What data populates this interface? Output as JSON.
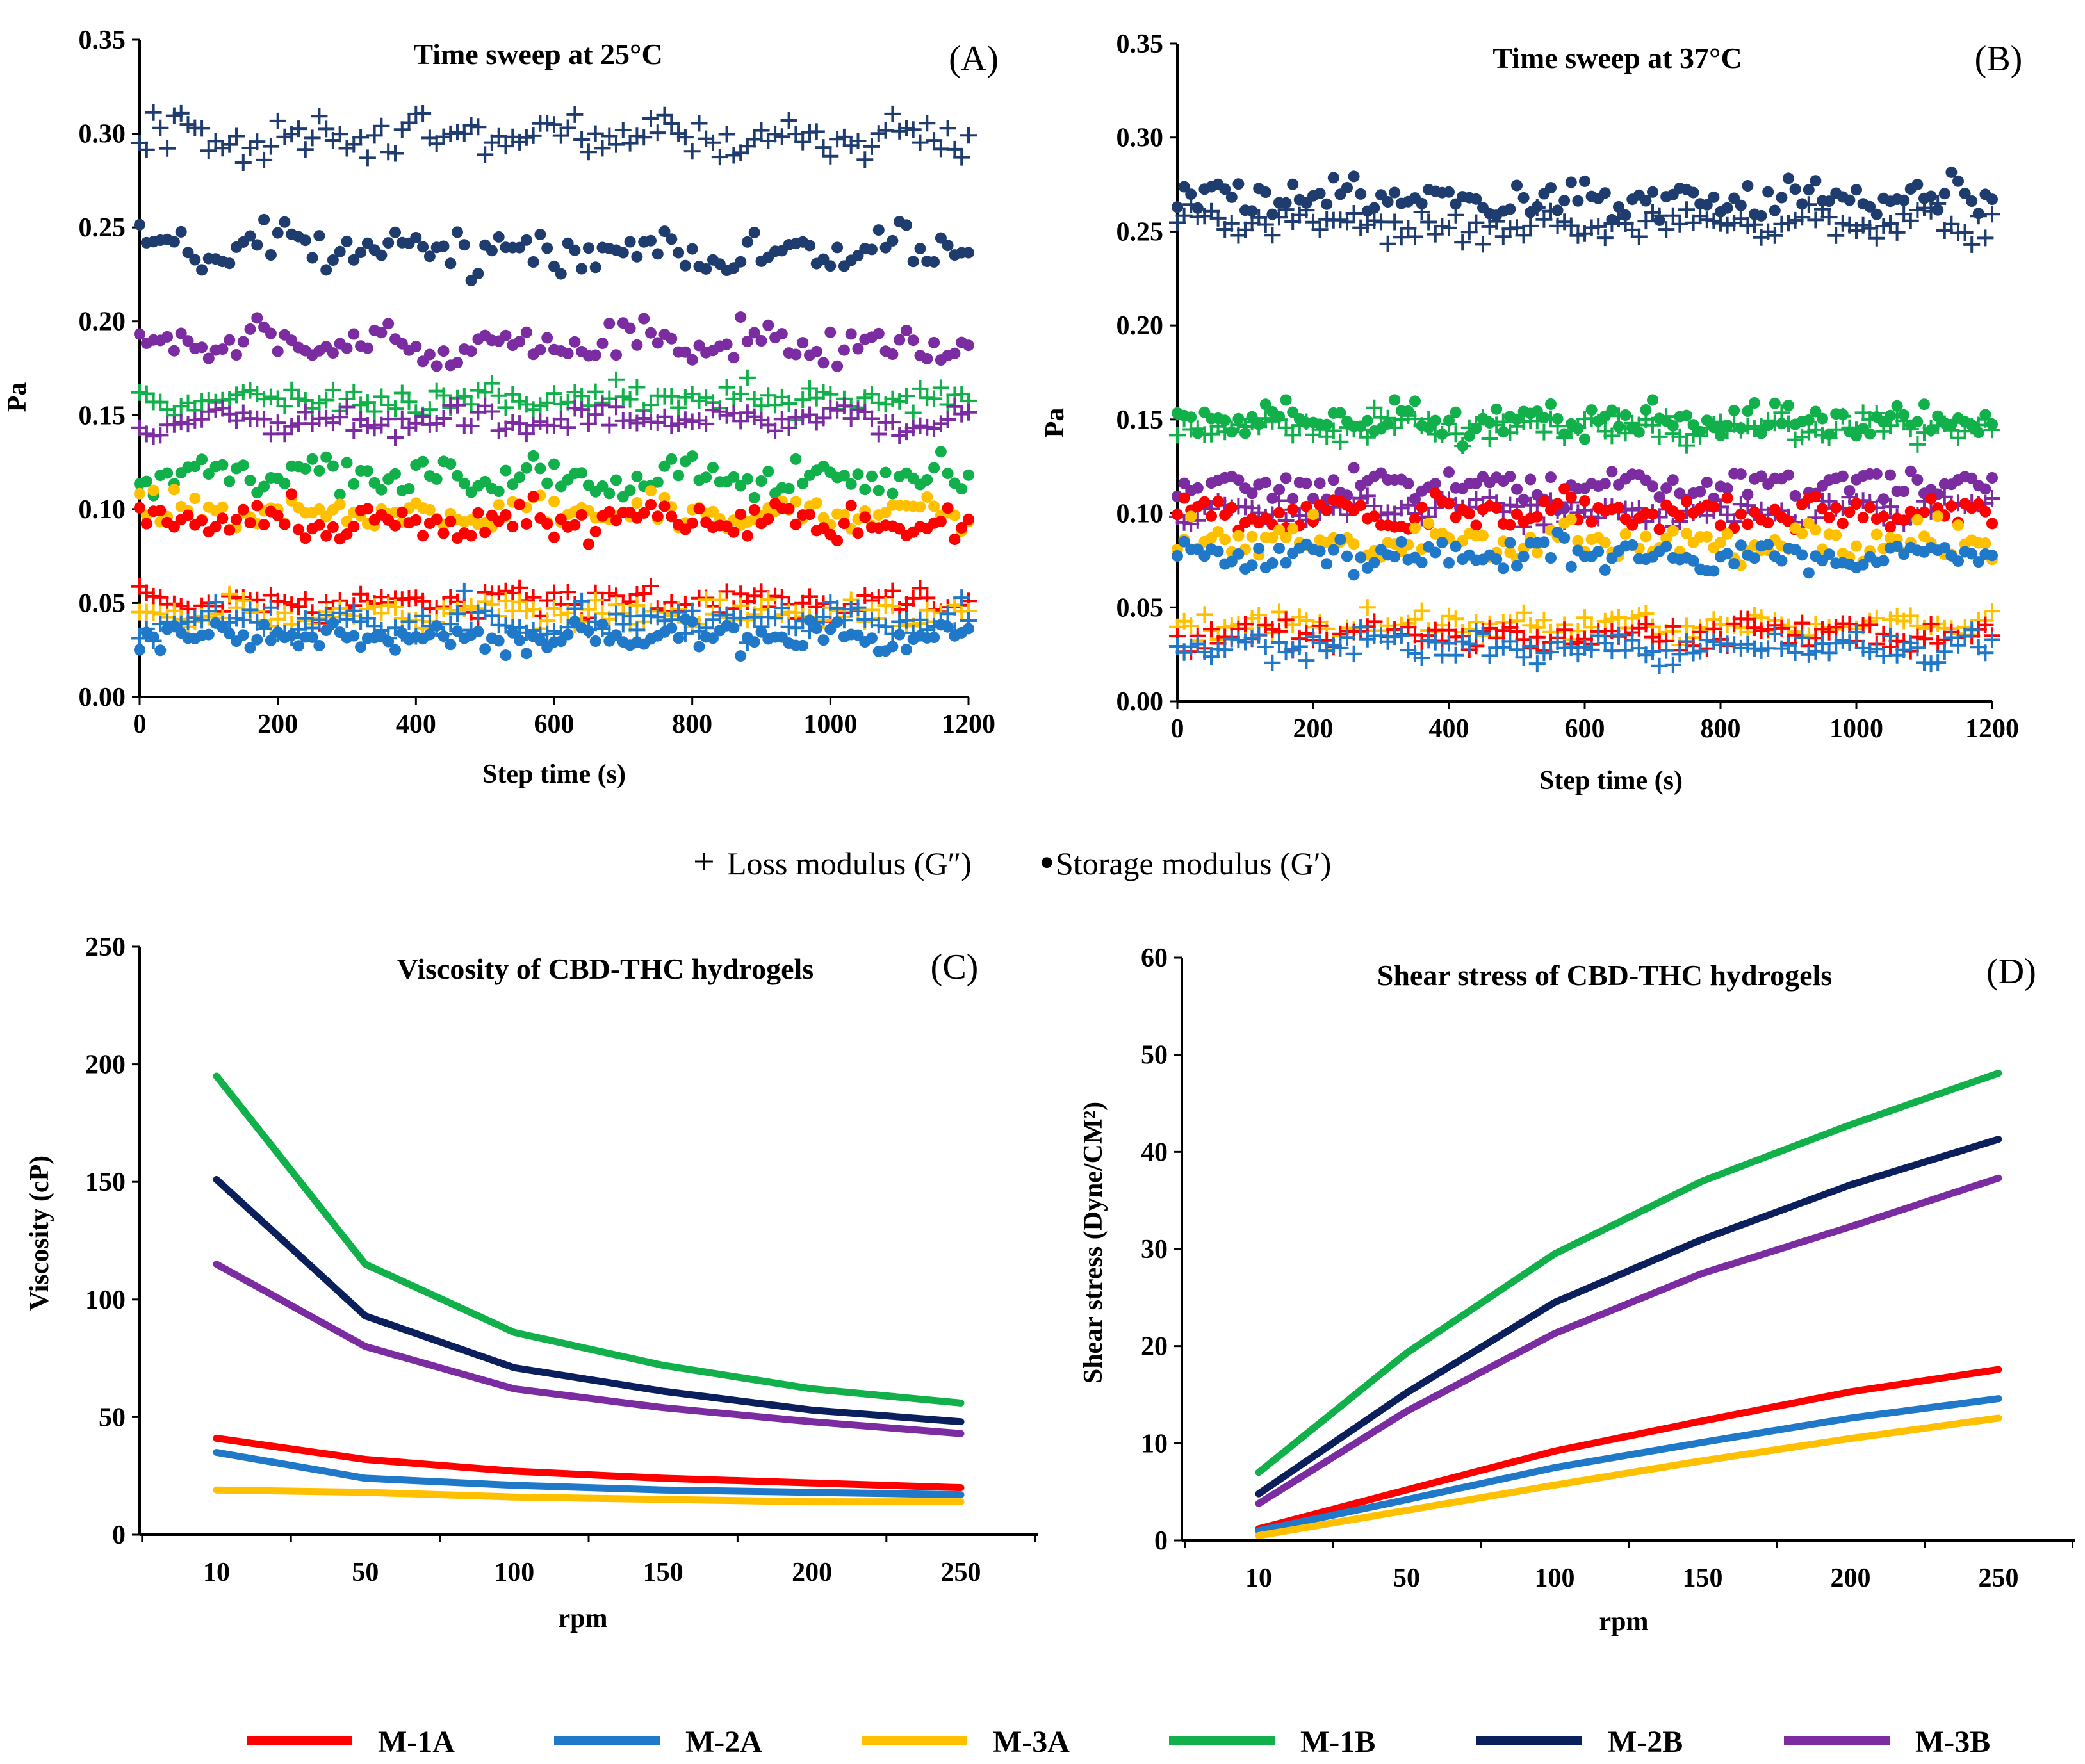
{
  "colors": {
    "M-1A": "#ff0000",
    "M-2A": "#1f78c8",
    "M-3A": "#ffc000",
    "M-1B": "#11b04a",
    "M-2B": "#0b1f5c",
    "M-3B": "#7a2ca0",
    "scatter-M-2B": "#1f3c6e"
  },
  "scatter_legend": {
    "loss": "Loss modulus (G″)",
    "storage": "Storage modulus (G′)",
    "loss_marker": "+",
    "storage_marker": "•"
  },
  "line_legend": [
    "M-1A",
    "M-2A",
    "M-3A",
    "M-1B",
    "M-2B",
    "M-3B"
  ],
  "chart_data": [
    {
      "type": "scatter",
      "panel": "(A)",
      "title": "Time sweep at 25°C",
      "xlabel": "Step time (s)",
      "ylabel": "Pa",
      "xlim": [
        0,
        1200
      ],
      "ylim": [
        0,
        0.35
      ],
      "xticks": [
        "0",
        "200",
        "400",
        "600",
        "800",
        "1000",
        "1200"
      ],
      "yticks": [
        "0.00",
        "0.05",
        "0.10",
        "0.15",
        "0.20",
        "0.25",
        "0.30",
        "0.35"
      ],
      "step_s": 10,
      "series": [
        {
          "name": "M-2B G″",
          "sample": "M-2B",
          "marker": "plus",
          "mean": 0.298,
          "spread": 0.008
        },
        {
          "name": "M-2B G′",
          "sample": "M-2B",
          "marker": "dot",
          "mean": 0.238,
          "spread": 0.008
        },
        {
          "name": "M-3B G′",
          "sample": "M-3B",
          "marker": "dot",
          "mean": 0.188,
          "spread": 0.007
        },
        {
          "name": "M-1B G″",
          "sample": "M-1B",
          "marker": "plus",
          "mean": 0.158,
          "spread": 0.006
        },
        {
          "name": "M-3B G″",
          "sample": "M-3B",
          "marker": "plus",
          "mean": 0.147,
          "spread": 0.005
        },
        {
          "name": "M-1B G′",
          "sample": "M-1B",
          "marker": "dot",
          "mean": 0.117,
          "spread": 0.007
        },
        {
          "name": "M-3A G′",
          "sample": "M-3A",
          "marker": "dot",
          "mean": 0.098,
          "spread": 0.007
        },
        {
          "name": "M-1A G′",
          "sample": "M-1A",
          "marker": "dot",
          "mean": 0.093,
          "spread": 0.008
        },
        {
          "name": "M-1A G″",
          "sample": "M-1A",
          "marker": "plus",
          "mean": 0.05,
          "spread": 0.006
        },
        {
          "name": "M-3A G″",
          "sample": "M-3A",
          "marker": "plus",
          "mean": 0.044,
          "spread": 0.006
        },
        {
          "name": "M-2A G″",
          "sample": "M-2A",
          "marker": "plus",
          "mean": 0.04,
          "spread": 0.007
        },
        {
          "name": "M-2A G′",
          "sample": "M-2A",
          "marker": "dot",
          "mean": 0.032,
          "spread": 0.006
        }
      ]
    },
    {
      "type": "scatter",
      "panel": "(B)",
      "title": "Time sweep at 37°C",
      "xlabel": "Step time (s)",
      "ylabel": "Pa",
      "xlim": [
        0,
        1200
      ],
      "ylim": [
        0,
        0.35
      ],
      "xticks": [
        "0",
        "200",
        "400",
        "600",
        "800",
        "1000",
        "1200"
      ],
      "yticks": [
        "0.00",
        "0.05",
        "0.10",
        "0.15",
        "0.20",
        "0.25",
        "0.30",
        "0.35"
      ],
      "step_s": 10,
      "series": [
        {
          "name": "M-2B G′",
          "sample": "M-2B",
          "marker": "dot",
          "mean": 0.268,
          "spread": 0.008
        },
        {
          "name": "M-2B G″",
          "sample": "M-2B",
          "marker": "plus",
          "mean": 0.254,
          "spread": 0.006
        },
        {
          "name": "M-1B G′",
          "sample": "M-1B",
          "marker": "dot",
          "mean": 0.15,
          "spread": 0.007
        },
        {
          "name": "M-1B G″",
          "sample": "M-1B",
          "marker": "plus",
          "mean": 0.146,
          "spread": 0.005
        },
        {
          "name": "M-3B G′",
          "sample": "M-3B",
          "marker": "dot",
          "mean": 0.115,
          "spread": 0.006
        },
        {
          "name": "M-3B G″",
          "sample": "M-3B",
          "marker": "plus",
          "mean": 0.102,
          "spread": 0.005
        },
        {
          "name": "M-1A G′",
          "sample": "M-1A",
          "marker": "dot",
          "mean": 0.1,
          "spread": 0.006
        },
        {
          "name": "M-3A G′",
          "sample": "M-3A",
          "marker": "dot",
          "mean": 0.085,
          "spread": 0.007
        },
        {
          "name": "M-2A G′",
          "sample": "M-2A",
          "marker": "dot",
          "mean": 0.078,
          "spread": 0.006
        },
        {
          "name": "M-3A G″",
          "sample": "M-3A",
          "marker": "plus",
          "mean": 0.04,
          "spread": 0.006
        },
        {
          "name": "M-1A G″",
          "sample": "M-1A",
          "marker": "plus",
          "mean": 0.036,
          "spread": 0.006
        },
        {
          "name": "M-2A G″",
          "sample": "M-2A",
          "marker": "plus",
          "mean": 0.03,
          "spread": 0.006
        }
      ]
    },
    {
      "type": "line",
      "panel": "(C)",
      "title": "Viscosity of CBD-THC hydrogels",
      "xlabel": "rpm",
      "ylabel": "Viscosity (cP)",
      "categories": [
        "10",
        "50",
        "100",
        "150",
        "200",
        "250"
      ],
      "ylim": [
        0,
        250
      ],
      "yticks": [
        "0",
        "50",
        "100",
        "150",
        "200",
        "250"
      ],
      "series": [
        {
          "name": "M-1A",
          "values": [
            41,
            32,
            27,
            24,
            22,
            20
          ]
        },
        {
          "name": "M-2A",
          "values": [
            35,
            24,
            21,
            19,
            18,
            17
          ]
        },
        {
          "name": "M-3A",
          "values": [
            19,
            18,
            16,
            15,
            14,
            14
          ]
        },
        {
          "name": "M-1B",
          "values": [
            195,
            115,
            86,
            72,
            62,
            56
          ]
        },
        {
          "name": "M-2B",
          "values": [
            151,
            93,
            71,
            61,
            53,
            48
          ]
        },
        {
          "name": "M-3B",
          "values": [
            115,
            80,
            62,
            54,
            48,
            43
          ]
        }
      ]
    },
    {
      "type": "line",
      "panel": "(D)",
      "title": "Shear stress of CBD-THC hydrogels",
      "xlabel": "rpm",
      "ylabel": "Shear stress (Dyne/CM²)",
      "categories": [
        "10",
        "50",
        "100",
        "150",
        "200",
        "250"
      ],
      "ylim": [
        0,
        60
      ],
      "yticks": [
        "0",
        "10",
        "20",
        "30",
        "40",
        "50",
        "60"
      ],
      "series": [
        {
          "name": "M-1A",
          "values": [
            1.2,
            5.2,
            9.2,
            12.3,
            15.3,
            17.6
          ]
        },
        {
          "name": "M-2A",
          "values": [
            1.0,
            4.2,
            7.5,
            10.1,
            12.6,
            14.6
          ]
        },
        {
          "name": "M-3A",
          "values": [
            0.5,
            3.1,
            5.7,
            8.2,
            10.5,
            12.6
          ]
        },
        {
          "name": "M-1B",
          "values": [
            7.0,
            19.3,
            29.5,
            37.0,
            42.8,
            48.1
          ]
        },
        {
          "name": "M-2B",
          "values": [
            4.8,
            15.2,
            24.5,
            31.0,
            36.6,
            41.3
          ]
        },
        {
          "name": "M-3B",
          "values": [
            3.8,
            13.3,
            21.3,
            27.5,
            32.3,
            37.3
          ]
        }
      ]
    }
  ]
}
